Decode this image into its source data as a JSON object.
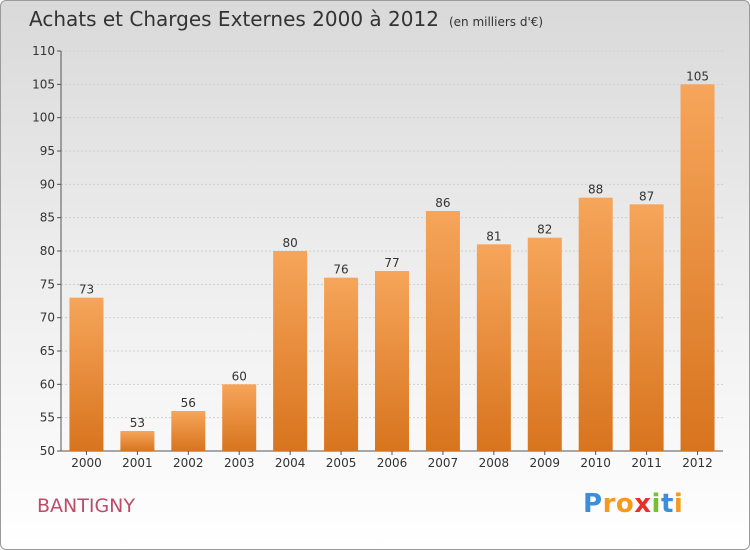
{
  "title": "Achats et Charges Externes 2000 à 2012",
  "subtitle": "(en milliers d'€)",
  "commune": "BANTIGNY",
  "logo": {
    "letters": [
      "P",
      "r",
      "o",
      "x",
      "i",
      "t",
      "i"
    ],
    "colors": [
      "#3a8fd8",
      "#f39a1f",
      "#f39a1f",
      "#e8302b",
      "#7bbf2e",
      "#3a8fd8",
      "#f39a1f"
    ]
  },
  "colors": {
    "bar_top": "#f6a55a",
    "bar_bottom": "#d8741e",
    "axis": "#555555",
    "grid": "#cfcfcf",
    "commune": "#c04a6a"
  },
  "chart_data": {
    "type": "bar",
    "categories": [
      "2000",
      "2001",
      "2002",
      "2003",
      "2004",
      "2005",
      "2006",
      "2007",
      "2008",
      "2009",
      "2010",
      "2011",
      "2012"
    ],
    "values": [
      73,
      53,
      56,
      60,
      80,
      76,
      77,
      86,
      81,
      82,
      88,
      87,
      105
    ],
    "ylim": [
      50,
      110
    ],
    "yticks": [
      50,
      55,
      60,
      65,
      70,
      75,
      80,
      85,
      90,
      95,
      100,
      105,
      110
    ],
    "grid": "horizontal",
    "data_labels": true
  }
}
